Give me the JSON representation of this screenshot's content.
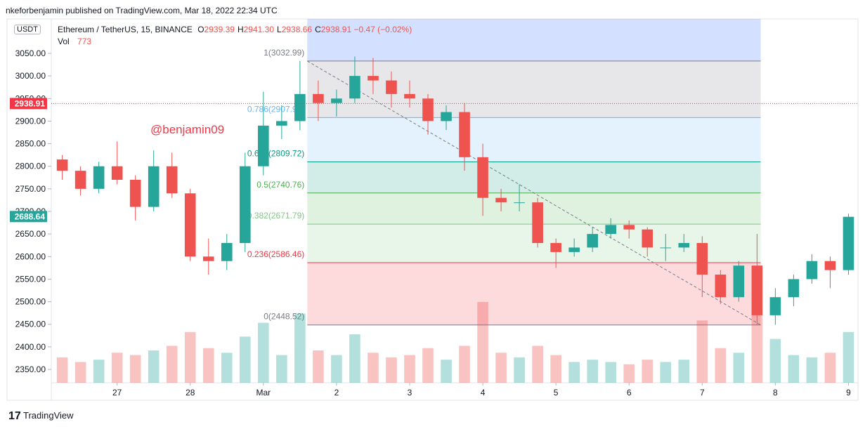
{
  "header": {
    "published": "nkeforbenjamin published on TradingView.com, Mar 18, 2022 22:34 UTC",
    "currency": "USDT",
    "symbol": "Ethereum / TetherUS, 15, BINANCE",
    "ohlc": [
      {
        "key": "O",
        "text": "2939.39"
      },
      {
        "key": "H",
        "text": "2941.30"
      },
      {
        "key": "L",
        "text": "2938.66"
      },
      {
        "key": "C",
        "text": "2938.91"
      }
    ],
    "change": "−0.47 (−0.02%)",
    "volume_key": "Vol",
    "volume_text": "773"
  },
  "chart_data": {
    "type": "candlestick",
    "annotation": "@benjamin09",
    "x": [
      0.25,
      0.5,
      0.75,
      1,
      1.25,
      1.5,
      1.75,
      2,
      2.25,
      2.5,
      2.75,
      3,
      3.25,
      3.5,
      3.75,
      4,
      4.25,
      4.5,
      4.75,
      5,
      5.25,
      5.5,
      5.75,
      6,
      6.25,
      6.5,
      6.75,
      7,
      7.25,
      7.5,
      7.75,
      8,
      8.25,
      8.5,
      8.75,
      9,
      9.25,
      9.5,
      9.75,
      10,
      10.25,
      10.5,
      10.75,
      11
    ],
    "open": [
      2815,
      2790,
      2750,
      2800,
      2770,
      2710,
      2800,
      2740,
      2600,
      2590,
      2630,
      2800,
      2890,
      2900,
      2960,
      2940,
      2950,
      3000,
      2990,
      2960,
      2950,
      2900,
      2920,
      2820,
      2730,
      2720,
      2720,
      2630,
      2610,
      2620,
      2650,
      2670,
      2660,
      2620,
      2620,
      2630,
      2560,
      2510,
      2580,
      2470,
      2510,
      2550,
      2590,
      2570
    ],
    "high": [
      2825,
      2800,
      2810,
      2855,
      2780,
      2835,
      2830,
      2750,
      2640,
      2650,
      2830,
      2965,
      2935,
      3033,
      2990,
      2970,
      3043,
      3040,
      3010,
      2990,
      2960,
      2935,
      2940,
      2850,
      2750,
      2760,
      2730,
      2640,
      2640,
      2665,
      2685,
      2680,
      2665,
      2650,
      2650,
      2645,
      2570,
      2590,
      2650,
      2530,
      2560,
      2605,
      2600,
      2695
    ],
    "low": [
      2770,
      2735,
      2740,
      2760,
      2680,
      2700,
      2730,
      2590,
      2560,
      2570,
      2610,
      2780,
      2860,
      2880,
      2900,
      2910,
      2940,
      2960,
      2930,
      2930,
      2870,
      2880,
      2790,
      2690,
      2700,
      2700,
      2620,
      2575,
      2600,
      2610,
      2640,
      2640,
      2600,
      2590,
      2610,
      2510,
      2495,
      2500,
      2449,
      2449,
      2490,
      2540,
      2530,
      2560
    ],
    "close": [
      2790,
      2750,
      2800,
      2770,
      2710,
      2800,
      2740,
      2600,
      2590,
      2630,
      2800,
      2890,
      2900,
      2960,
      2940,
      2950,
      3000,
      2990,
      2960,
      2950,
      2900,
      2920,
      2820,
      2730,
      2720,
      2720,
      2630,
      2610,
      2620,
      2650,
      2670,
      2660,
      2620,
      2620,
      2630,
      2560,
      2510,
      2580,
      2470,
      2510,
      2550,
      2590,
      2570,
      2688
    ],
    "volume": [
      1100,
      900,
      1000,
      1300,
      1200,
      1400,
      1600,
      2200,
      1500,
      1300,
      2000,
      2600,
      1200,
      3000,
      1400,
      1200,
      2100,
      1300,
      1100,
      1200,
      1500,
      1000,
      1600,
      3500,
      1300,
      1100,
      1600,
      1200,
      900,
      1000,
      900,
      800,
      1000,
      900,
      1000,
      2700,
      1500,
      1300,
      3300,
      1900,
      1200,
      1100,
      1300,
      2200
    ],
    "up_color": "#26a69a",
    "down_color": "#ef5350",
    "xlim": [
      0.1,
      11.13
    ],
    "ylim": [
      2320.5,
      3126.2
    ],
    "xticks": [
      {
        "value": 1,
        "label": "27"
      },
      {
        "value": 2,
        "label": "28"
      },
      {
        "value": 3,
        "label": "Mar"
      },
      {
        "value": 4,
        "label": "2"
      },
      {
        "value": 5,
        "label": "3"
      },
      {
        "value": 6,
        "label": "4"
      },
      {
        "value": 7,
        "label": "5"
      },
      {
        "value": 8,
        "label": "6"
      },
      {
        "value": 9,
        "label": "7"
      },
      {
        "value": 10,
        "label": "8"
      },
      {
        "value": 11,
        "label": "9"
      }
    ],
    "yticks": [
      {
        "value": 2350,
        "label": "2350.00"
      },
      {
        "value": 2400,
        "label": "2400.00"
      },
      {
        "value": 2450,
        "label": "2450.00"
      },
      {
        "value": 2500,
        "label": "2500.00"
      },
      {
        "value": 2550,
        "label": "2550.00"
      },
      {
        "value": 2600,
        "label": "2600.00"
      },
      {
        "value": 2650,
        "label": "2650.00"
      },
      {
        "value": 2700,
        "label": "2700.00"
      },
      {
        "value": 2750,
        "label": "2750.00"
      },
      {
        "value": 2800,
        "label": "2800.00"
      },
      {
        "value": 2850,
        "label": "2850.00"
      },
      {
        "value": 2900,
        "label": "2900.00"
      },
      {
        "value": 2950,
        "label": "2950.00"
      },
      {
        "value": 3000,
        "label": "3000.00"
      },
      {
        "value": 3050,
        "label": "3050.00"
      }
    ],
    "price_tags": [
      {
        "value": 2938.91,
        "label": "2938.91",
        "color": "#f23645"
      },
      {
        "value": 2688.64,
        "label": "2688.64",
        "color": "#26a69a"
      }
    ],
    "fib": {
      "x": [
        3.6,
        9.8
      ],
      "levels": [
        {
          "value": 3032.99,
          "label": "1(3032.99)",
          "color": "#787b86"
        },
        {
          "value": 2907.91,
          "label": "0.786(2907.91)",
          "color": "#64b5f6"
        },
        {
          "value": 2809.72,
          "label": "0.618(2809.72)",
          "color": "#089981"
        },
        {
          "value": 2740.76,
          "label": "0.5(2740.76)",
          "color": "#4caf50"
        },
        {
          "value": 2671.79,
          "label": "0.382(2671.79)",
          "color": "#81c784"
        },
        {
          "value": 2586.46,
          "label": "0.236(2586.46)",
          "color": "#f23645"
        },
        {
          "value": 2448.52,
          "label": "0(2448.52)",
          "color": "#787b86"
        }
      ]
    },
    "trend_line": {
      "x": [
        3.6,
        9.8
      ],
      "y": [
        3032.99,
        2448.52
      ]
    }
  },
  "footer": {
    "brand": "TradingView"
  }
}
